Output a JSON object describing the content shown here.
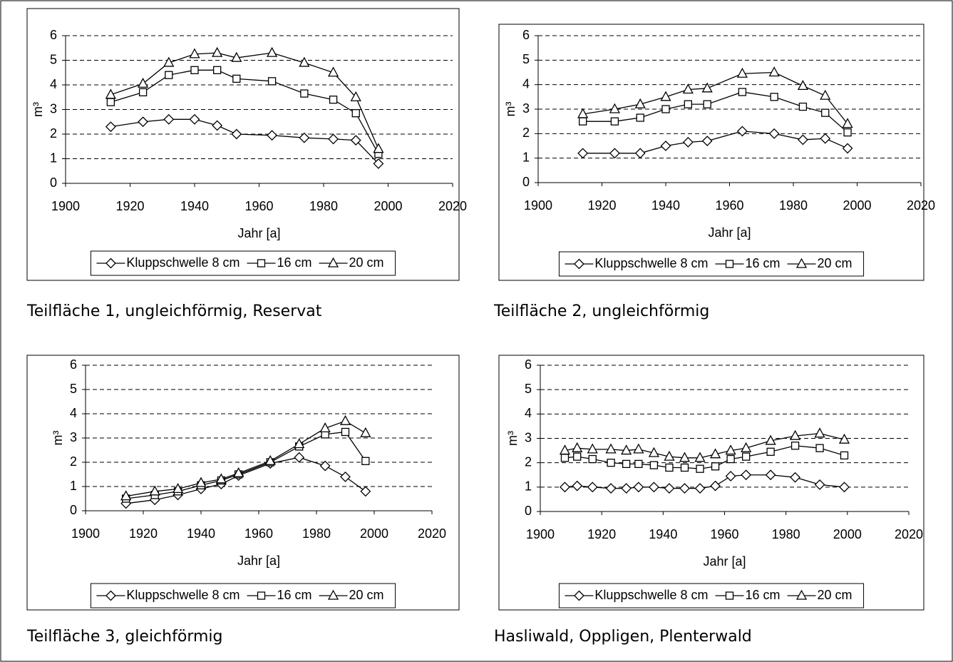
{
  "chart_data": [
    {
      "type": "line",
      "caption": "Teilfläche 1, ungleichförmig, Reservat",
      "x_label": "Jahr [a]",
      "y_label": "m³",
      "x": [
        1914,
        1924,
        1932,
        1940,
        1947,
        1953,
        1964,
        1974,
        1983,
        1990,
        1997
      ],
      "series": [
        {
          "name": "Kluppschwelle 8 cm",
          "color": "#000000",
          "marker": "diamond",
          "values": [
            2.3,
            2.5,
            2.6,
            2.6,
            2.35,
            2.0,
            1.95,
            1.85,
            1.8,
            1.75,
            0.8
          ]
        },
        {
          "name": "16 cm",
          "color": "#000000",
          "marker": "square",
          "values": [
            3.3,
            3.7,
            4.4,
            4.6,
            4.6,
            4.25,
            4.15,
            3.65,
            3.4,
            2.85,
            1.2
          ]
        },
        {
          "name": "20 cm",
          "color": "#000000",
          "marker": "triangle",
          "values": [
            3.6,
            4.05,
            4.9,
            5.25,
            5.3,
            5.1,
            5.3,
            4.9,
            4.5,
            3.5,
            1.4
          ]
        }
      ],
      "xlim": [
        1900,
        2020
      ],
      "xticks": [
        1900,
        1920,
        1940,
        1960,
        1980,
        2000,
        2020
      ],
      "ylim": [
        0,
        6
      ],
      "yticks": [
        0,
        1,
        2,
        3,
        4,
        5,
        6
      ],
      "grid": true,
      "legend": "bottom"
    },
    {
      "type": "line",
      "caption": "Teilfläche 2, ungleichförmig",
      "x_label": "Jahr [a]",
      "y_label": "m³",
      "x": [
        1914,
        1924,
        1932,
        1940,
        1947,
        1953,
        1964,
        1974,
        1983,
        1990,
        1997
      ],
      "series": [
        {
          "name": "Kluppschwelle 8 cm",
          "color": "#000000",
          "marker": "diamond",
          "values": [
            1.2,
            1.2,
            1.2,
            1.5,
            1.65,
            1.7,
            2.1,
            2.0,
            1.75,
            1.8,
            1.4
          ]
        },
        {
          "name": "16 cm",
          "color": "#000000",
          "marker": "square",
          "values": [
            2.5,
            2.5,
            2.65,
            3.0,
            3.2,
            3.2,
            3.7,
            3.5,
            3.1,
            2.85,
            2.05
          ]
        },
        {
          "name": "20 cm",
          "color": "#000000",
          "marker": "triangle",
          "values": [
            2.8,
            3.0,
            3.2,
            3.5,
            3.8,
            3.85,
            4.45,
            4.5,
            3.95,
            3.55,
            2.4
          ]
        }
      ],
      "xlim": [
        1900,
        2020
      ],
      "xticks": [
        1900,
        1920,
        1940,
        1960,
        1980,
        2000,
        2020
      ],
      "ylim": [
        0,
        6
      ],
      "yticks": [
        0,
        1,
        2,
        3,
        4,
        5,
        6
      ],
      "grid": true,
      "legend": "bottom"
    },
    {
      "type": "line",
      "caption": "Teilfläche 3, gleichförmig",
      "x_label": "Jahr [a]",
      "y_label": "m³",
      "x": [
        1914,
        1924,
        1932,
        1940,
        1947,
        1953,
        1964,
        1974,
        1983,
        1990,
        1997
      ],
      "series": [
        {
          "name": "Kluppschwelle 8 cm",
          "color": "#000000",
          "marker": "diamond",
          "values": [
            0.3,
            0.45,
            0.65,
            0.9,
            1.1,
            1.45,
            1.95,
            2.2,
            1.85,
            1.4,
            0.8
          ]
        },
        {
          "name": "16 cm",
          "color": "#000000",
          "marker": "square",
          "values": [
            0.5,
            0.65,
            0.8,
            1.05,
            1.25,
            1.5,
            2.0,
            2.65,
            3.15,
            3.25,
            2.05
          ]
        },
        {
          "name": "20 cm",
          "color": "#000000",
          "marker": "triangle",
          "values": [
            0.6,
            0.8,
            0.9,
            1.15,
            1.3,
            1.55,
            2.05,
            2.75,
            3.4,
            3.7,
            3.2
          ]
        }
      ],
      "xlim": [
        1900,
        2020
      ],
      "xticks": [
        1900,
        1920,
        1940,
        1960,
        1980,
        2000,
        2020
      ],
      "ylim": [
        0,
        6
      ],
      "yticks": [
        0,
        1,
        2,
        3,
        4,
        5,
        6
      ],
      "grid": true,
      "legend": "bottom"
    },
    {
      "type": "line",
      "caption": "Hasliwald, Oppligen, Plenterwald",
      "x_label": "Jahr [a]",
      "y_label": "m³",
      "x": [
        1908,
        1912,
        1917,
        1923,
        1928,
        1932,
        1937,
        1942,
        1947,
        1952,
        1957,
        1962,
        1967,
        1975,
        1983,
        1991,
        1999
      ],
      "series": [
        {
          "name": "Kluppschwelle 8 cm",
          "color": "#000000",
          "marker": "diamond",
          "values": [
            1.0,
            1.05,
            1.0,
            0.95,
            0.95,
            1.0,
            1.0,
            0.95,
            0.95,
            0.95,
            1.05,
            1.45,
            1.5,
            1.5,
            1.4,
            1.1,
            1.0
          ]
        },
        {
          "name": "16 cm",
          "color": "#000000",
          "marker": "square",
          "values": [
            2.2,
            2.25,
            2.15,
            2.0,
            1.95,
            1.95,
            1.9,
            1.8,
            1.8,
            1.75,
            1.85,
            2.15,
            2.25,
            2.45,
            2.7,
            2.6,
            2.3
          ]
        },
        {
          "name": "20 cm",
          "color": "#000000",
          "marker": "triangle",
          "values": [
            2.5,
            2.6,
            2.55,
            2.55,
            2.5,
            2.55,
            2.4,
            2.25,
            2.2,
            2.2,
            2.35,
            2.5,
            2.6,
            2.9,
            3.1,
            3.2,
            2.95
          ]
        }
      ],
      "xlim": [
        1900,
        2020
      ],
      "xticks": [
        1900,
        1920,
        1940,
        1960,
        1980,
        2000,
        2020
      ],
      "ylim": [
        0,
        6
      ],
      "yticks": [
        0,
        1,
        2,
        3,
        4,
        5,
        6
      ],
      "grid": true,
      "legend": "bottom"
    }
  ]
}
